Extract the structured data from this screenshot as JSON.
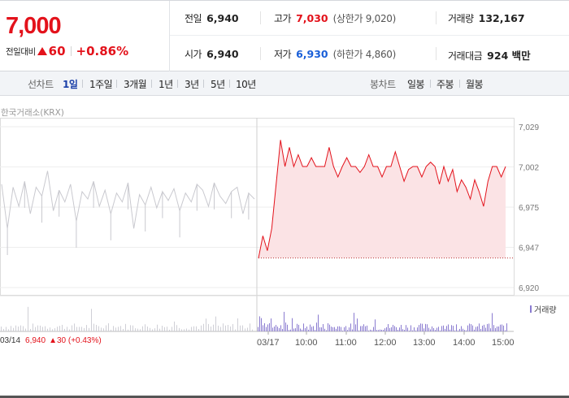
{
  "quote": {
    "current_price": "7,000",
    "change_label": "전일대비",
    "change_amount": "60",
    "change_rate": "+0.86%",
    "stats_row1": [
      {
        "label": "전일",
        "value": "6,940",
        "color": "normal"
      },
      {
        "label": "고가",
        "value": "7,030",
        "color": "red",
        "sub": "(상한가 9,020)"
      },
      {
        "label": "거래량",
        "value": "132,167",
        "color": "normal"
      }
    ],
    "stats_row2": [
      {
        "label": "시가",
        "value": "6,940",
        "color": "normal"
      },
      {
        "label": "저가",
        "value": "6,930",
        "color": "blue",
        "sub": "(하한가 4,860)"
      },
      {
        "label": "거래대금",
        "value": "924 백만",
        "color": "normal"
      }
    ]
  },
  "tabs": {
    "line_title": "선차트",
    "line_tabs": [
      "1일",
      "1주일",
      "3개월",
      "1년",
      "3년",
      "5년",
      "10년"
    ],
    "line_active": "1일",
    "candle_title": "봉차트",
    "candle_tabs": [
      "일봉",
      "주봉",
      "월봉"
    ]
  },
  "chart": {
    "source": "한국거래소(KRX)",
    "volume_legend": "거래량",
    "prev_day_date": "03/14",
    "prev_day_close": "6,940",
    "prev_day_change": "▲30 (+0.43%)"
  },
  "chart_data": {
    "type": "line",
    "ylim": [
      6920,
      7029
    ],
    "yticks": [
      "7,029",
      "7,002",
      "6,975",
      "6,947",
      "6,920"
    ],
    "xticks": [
      "03/14",
      "03/17",
      "10:00",
      "11:00",
      "12:00",
      "13:00",
      "14:00",
      "15:00"
    ],
    "base_price": 6940,
    "series": [
      {
        "values": [
          6990,
          6960,
          6988,
          6975,
          6992,
          6970,
          6988,
          6982,
          6999,
          6972,
          6986,
          6978,
          6990,
          6965,
          6985,
          6980,
          6992,
          6975,
          6986,
          6970,
          6984,
          6978,
          6991,
          6960,
          6983,
          6976,
          6988,
          6974,
          6985,
          6979,
          6987,
          6972,
          6984,
          6978,
          6990,
          6986,
          6975,
          6991,
          6982,
          6977,
          6985,
          6988,
          6970,
          6984,
          6980
        ]
      },
      {
        "values": [
          6940,
          6955,
          6945,
          6960,
          6990,
          7020,
          7002,
          7015,
          7002,
          7010,
          7002,
          7002,
          7008,
          7002,
          7002,
          7002,
          7015,
          7002,
          6995,
          7002,
          7008,
          7002,
          7002,
          6998,
          7002,
          7010,
          7002,
          7002,
          6995,
          7002,
          7002,
          7012,
          7002,
          6992,
          7000,
          7002,
          7002,
          6995,
          7002,
          7005,
          7002,
          6990,
          7002,
          6992,
          7000,
          6985,
          6993,
          6988,
          6980,
          6993,
          6985,
          6975,
          6992,
          7002,
          7002,
          6995,
          7002
        ]
      }
    ]
  }
}
